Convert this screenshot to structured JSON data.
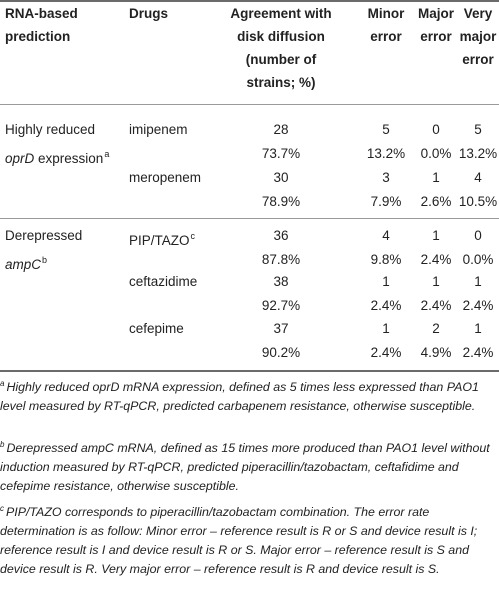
{
  "table": {
    "headers": {
      "prediction": [
        "RNA-based",
        "prediction"
      ],
      "drugs": "Drugs",
      "agreement": [
        "Agreement with",
        "disk diffusion",
        "(number of",
        "strains; %)"
      ],
      "minor": [
        "Minor",
        "error"
      ],
      "major": [
        "Major",
        "error"
      ],
      "very_major": [
        "Very",
        "major",
        "error"
      ]
    },
    "groups": [
      {
        "label_line1": "Highly reduced",
        "label_line2_em": "oprD",
        "label_line2_rest": " expression",
        "label_sup": "a",
        "rows": [
          {
            "drug": "imipenem",
            "drug_sup": "",
            "agree_n": "28",
            "agree_pct": "73.7%",
            "minor_n": "5",
            "minor_pct": "13.2%",
            "major_n": "0",
            "major_pct": "0.0%",
            "vmajor_n": "5",
            "vmajor_pct": "13.2%"
          },
          {
            "drug": "meropenem",
            "drug_sup": "",
            "agree_n": "30",
            "agree_pct": "78.9%",
            "minor_n": "3",
            "minor_pct": "7.9%",
            "major_n": "1",
            "major_pct": "2.6%",
            "vmajor_n": "4",
            "vmajor_pct": "10.5%"
          }
        ]
      },
      {
        "label_line1": "Derepressed",
        "label_line2_em": "ampC",
        "label_line2_rest": "",
        "label_sup": "b",
        "rows": [
          {
            "drug": "PIP/TAZO",
            "drug_sup": "c",
            "agree_n": "36",
            "agree_pct": "87.8%",
            "minor_n": "4",
            "minor_pct": "9.8%",
            "major_n": "1",
            "major_pct": "2.4%",
            "vmajor_n": "0",
            "vmajor_pct": "0.0%"
          },
          {
            "drug": "ceftazidime",
            "drug_sup": "",
            "agree_n": "38",
            "agree_pct": "92.7%",
            "minor_n": "1",
            "minor_pct": "2.4%",
            "major_n": "1",
            "major_pct": "2.4%",
            "vmajor_n": "1",
            "vmajor_pct": "2.4%"
          },
          {
            "drug": "cefepime",
            "drug_sup": "",
            "agree_n": "37",
            "agree_pct": "90.2%",
            "minor_n": "1",
            "minor_pct": "2.4%",
            "major_n": "2",
            "major_pct": "4.9%",
            "vmajor_n": "1",
            "vmajor_pct": "2.4%"
          }
        ]
      }
    ]
  },
  "footnotes": [
    {
      "mark": "a",
      "text": "Highly reduced oprD mRNA expression, defined as 5 times less expressed than PAO1 level measured by RT-qPCR, predicted carbapenem resistance, otherwise susceptible."
    },
    {
      "mark": "b",
      "text": "Derepressed ampC mRNA, defined as 15 times more produced than PAO1 level without induction measured by RT-qPCR, predicted piperacillin/tazobactam, ceftafidime and cefepime resistance, otherwise susceptible."
    },
    {
      "mark": "c",
      "text": "PIP/TAZO corresponds to piperacillin/tazobactam combination. The error rate determination is as follow: Minor error – reference result is R or S and device result is I; reference result is I and device result is R or S. Major error – reference result is S and device result is R. Very major error – reference result is R and device result is S."
    }
  ],
  "colors": {
    "rule": "#6b6b6b",
    "text": "#222222"
  }
}
